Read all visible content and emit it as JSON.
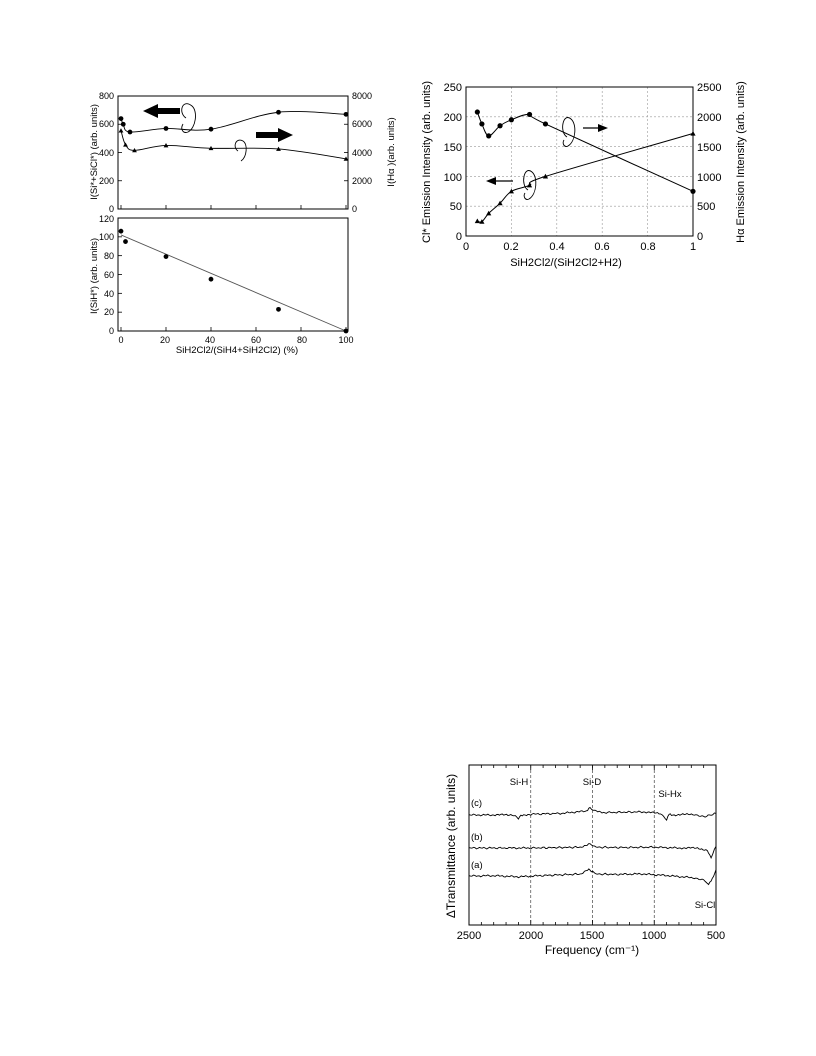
{
  "chart_data": [
    {
      "id": "fig-left-top",
      "type": "line",
      "xlabel": "",
      "ylabel": "I(Si*+SiCl*)  (arb. units)",
      "ylabel_right": "I(Hα )(arb. units)",
      "xlim": [
        0,
        100
      ],
      "ylim": [
        0,
        800
      ],
      "ylim_right": [
        0,
        8000
      ],
      "yticks": [
        "0",
        "200",
        "400",
        "600",
        "800"
      ],
      "yticks_right": [
        "0",
        "2000",
        "4000",
        "6000",
        "8000"
      ],
      "grid": false,
      "series": [
        {
          "marker": "circle",
          "axis": "right",
          "x": [
            0,
            1,
            4,
            20,
            40,
            70,
            100
          ],
          "y": [
            6400,
            6000,
            5450,
            5700,
            5650,
            6850,
            6700
          ]
        },
        {
          "marker": "triangle",
          "axis": "left",
          "x": [
            0,
            2,
            6,
            20,
            40,
            70,
            100
          ],
          "y": [
            555,
            455,
            415,
            450,
            430,
            425,
            355
          ]
        }
      ]
    },
    {
      "id": "fig-left-bottom",
      "type": "scatter",
      "xlabel": "SiH2Cl2/(SiH4+SiH2Cl2) (%)",
      "ylabel": "I(SiH*) (arb. units)",
      "xlim": [
        0,
        100
      ],
      "ylim": [
        0,
        120
      ],
      "xticks": [
        "0",
        "20",
        "40",
        "60",
        "80",
        "100"
      ],
      "yticks": [
        "0",
        "20",
        "40",
        "60",
        "80",
        "100",
        "120"
      ],
      "grid": false,
      "fit_line": {
        "x": [
          0,
          100
        ],
        "y": [
          102,
          0
        ]
      },
      "series": [
        {
          "marker": "circle",
          "x": [
            0,
            2,
            20,
            40,
            70,
            100
          ],
          "y": [
            106,
            95,
            79,
            55,
            23,
            0
          ]
        }
      ]
    },
    {
      "id": "fig-right-top",
      "type": "line",
      "xlabel": "SiH2Cl2/(SiH2Cl2+H2)",
      "ylabel": "Cl* Emission Intensity (arb. units)",
      "ylabel_right": "Hα Emission Intensity (arb. units)",
      "xlim": [
        0,
        1
      ],
      "ylim": [
        0,
        250
      ],
      "ylim_right": [
        0,
        2500
      ],
      "xticks": [
        "0",
        "0.2",
        "0.4",
        "0.6",
        "0.8",
        "1"
      ],
      "yticks": [
        "0",
        "50",
        "100",
        "150",
        "200",
        "250"
      ],
      "yticks_right": [
        "0",
        "500",
        "1000",
        "1500",
        "2000",
        "2500"
      ],
      "grid": true,
      "series": [
        {
          "marker": "circle",
          "axis": "right",
          "x": [
            0.05,
            0.07,
            0.1,
            0.15,
            0.2,
            0.28,
            0.35,
            1.0
          ],
          "y": [
            2080,
            1880,
            1680,
            1850,
            1950,
            2040,
            1880,
            750
          ]
        },
        {
          "marker": "triangle",
          "axis": "left",
          "x": [
            0.05,
            0.07,
            0.1,
            0.15,
            0.2,
            0.28,
            0.35,
            1.0
          ],
          "y": [
            25,
            24,
            38,
            55,
            75,
            85,
            100,
            172
          ]
        }
      ]
    },
    {
      "id": "fig-right-bottom",
      "type": "line",
      "xlabel": "Frequency (cm⁻¹)",
      "ylabel": "ΔTransmittance (arb. units)",
      "xlim": [
        2500,
        500
      ],
      "xticks": [
        "2500",
        "2000",
        "1500",
        "1000",
        "500"
      ],
      "grid": false,
      "vlines": [
        2000,
        1500,
        1000
      ],
      "peak_labels": [
        "Si-H",
        "Si-D",
        "Si-Hx",
        "Si-Cl"
      ],
      "series": [
        {
          "name": "(c)",
          "x": [
            2500,
            2300,
            2150,
            2100,
            2080,
            2000,
            1750,
            1550,
            1520,
            1480,
            1400,
            1100,
            950,
            900,
            880,
            850,
            700,
            600,
            540,
            500
          ],
          "y": [
            0,
            0,
            0.2,
            -2,
            -0.3,
            0.5,
            1,
            2.5,
            4.5,
            2.5,
            1.5,
            2,
            1,
            -3,
            0.5,
            0,
            0.5,
            -1,
            0,
            1
          ]
        },
        {
          "name": "(b)",
          "x": [
            2500,
            2200,
            2000,
            1600,
            1520,
            1470,
            1300,
            1000,
            800,
            650,
            570,
            540,
            500
          ],
          "y": [
            0,
            0,
            0,
            0.5,
            2.5,
            0.5,
            0.3,
            0.5,
            0,
            0,
            -1.5,
            -6,
            1
          ]
        },
        {
          "name": "(a)",
          "x": [
            2500,
            2300,
            2100,
            1900,
            1600,
            1530,
            1510,
            1470,
            1300,
            1100,
            900,
            700,
            600,
            560,
            530,
            500
          ],
          "y": [
            0,
            0.2,
            -0.5,
            0.3,
            1.2,
            4,
            3,
            1.2,
            1,
            1.3,
            0.3,
            -1,
            -2.5,
            -5,
            -2,
            4
          ]
        }
      ]
    }
  ],
  "left_figure": {
    "top": {
      "yticks": [
        "0",
        "200",
        "400",
        "600",
        "800"
      ],
      "yticks_right": [
        "0",
        "2000",
        "4000",
        "6000",
        "8000"
      ],
      "ylabel": "I(Si*+SiCl*)  (arb. units)",
      "ylabel_right": "I(Hα )(arb. units)"
    },
    "bottom": {
      "xticks": [
        "0",
        "20",
        "40",
        "60",
        "80",
        "100"
      ],
      "yticks": [
        "0",
        "20",
        "40",
        "60",
        "80",
        "100",
        "120"
      ],
      "ylabel": "I(SiH*) (arb. units)",
      "xlabel": "SiH2Cl2/(SiH4+SiH2Cl2) (%)"
    }
  },
  "right_top_figure": {
    "xticks": [
      "0",
      "0.2",
      "0.4",
      "0.6",
      "0.8",
      "1"
    ],
    "yticks": [
      "0",
      "50",
      "100",
      "150",
      "200",
      "250"
    ],
    "yticks_right": [
      "0",
      "500",
      "1000",
      "1500",
      "2000",
      "2500"
    ],
    "ylabel": "Cl* Emission Intensity (arb. units)",
    "ylabel_right": "Hα Emission Intensity (arb. units)",
    "xlabel": "SiH2Cl2/(SiH2Cl2+H2)"
  },
  "right_bottom_figure": {
    "xticks": [
      "2500",
      "2000",
      "1500",
      "1000",
      "500"
    ],
    "ylabel": "ΔTransmittance (arb. units)",
    "xlabel": "Frequency (cm⁻¹)",
    "labels": {
      "si_h": "Si-H",
      "si_d": "Si-D",
      "si_hx": "Si-Hx",
      "si_cl": "Si-Cl"
    },
    "curve_labels": {
      "a": "(a)",
      "b": "(b)",
      "c": "(c)"
    }
  }
}
